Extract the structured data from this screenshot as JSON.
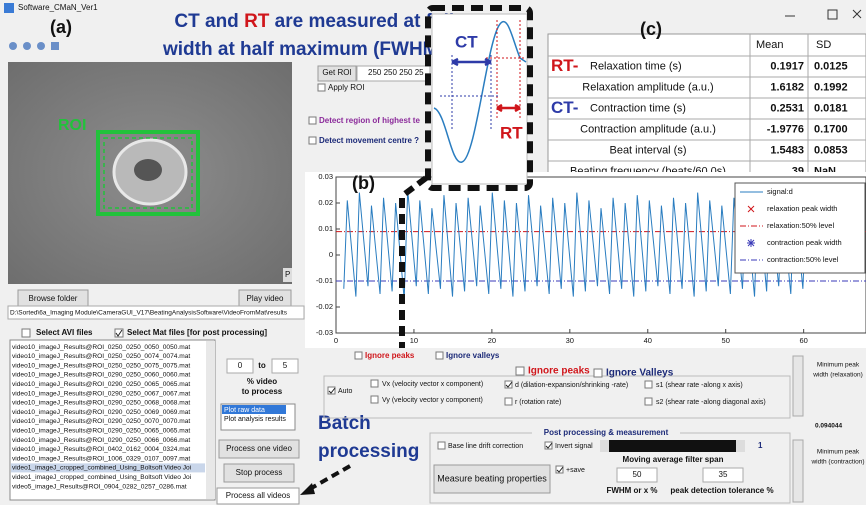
{
  "window": {
    "title": "Software_CMaN_Ver1"
  },
  "panel_labels": [
    "(a)",
    "(b)",
    "(c)"
  ],
  "annotation": {
    "line1": [
      "CT and ",
      "RT",
      " are measured at full"
    ],
    "line2": "width at half maximum (FWHM )",
    "batch": [
      "Batch",
      "processing"
    ],
    "inset_ct": "CT",
    "inset_rt": "RT"
  },
  "video_panel": {
    "roi_label": "ROI",
    "corner": "P",
    "browse": "Browse folder",
    "play": "Play video",
    "path": "D:\\Sorted\\6a_Imaging Module\\CameraGUI_V17\\BeatingAnalysisSoftware\\VideoFromMat\\results"
  },
  "file_select": {
    "avi": "Select AVI files",
    "mat": "Select Mat files [for post processing]",
    "selected": 13,
    "files": [
      "video10_imageJ_Results@ROI_0250_0250_0050_0050.mat",
      "video10_imageJ_Results@ROI_0250_0250_0074_0074.mat",
      "video10_imageJ_Results@ROI_0250_0250_0075_0075.mat",
      "video10_imageJ_Results@ROI_0290_0250_0060_0060.mat",
      "video10_imageJ_Results@ROI_0290_0250_0065_0065.mat",
      "video10_imageJ_Results@ROI_0290_0250_0067_0067.mat",
      "video10_imageJ_Results@ROI_0290_0250_0068_0068.mat",
      "video10_imageJ_Results@ROI_0290_0250_0069_0069.mat",
      "video10_imageJ_Results@ROI_0290_0250_0070_0070.mat",
      "video10_imageJ_Results@ROI_0290_0250_0065_0065.mat",
      "video10_imageJ_Results@ROI_0290_0250_0066_0066.mat",
      "video10_imageJ_Results@ROI_0402_0162_0004_0324.mat",
      "video10_imageJ_Results@ROI_1006_0329_0107_0097.mat",
      "video1_imageJ_cropped_combined_Using_Boltsoft Video Joi",
      "video1_imageJ_cropped_combined_Using_Boltsoft Video Joi",
      "video5_imageJ_Results@ROI_0904_0282_0257_0286.mat"
    ]
  },
  "range": {
    "from": "0",
    "to_label": "to",
    "to": "5",
    "caption": [
      "% video",
      "to process"
    ]
  },
  "plot_list": [
    "Plot raw data",
    "Plot analysis results"
  ],
  "process_buttons": [
    "Process one video",
    "Stop process",
    "Process all videos"
  ],
  "roi_controls": {
    "get_roi": "Get ROI",
    "roi_value": "250 250 250 25",
    "apply": "Apply ROI",
    "detect_region": "Detect region of highest te",
    "detect_centre": "Detect movement centre ?"
  },
  "table": {
    "header": [
      "Mean",
      "SD"
    ],
    "rows": [
      {
        "prefix": "RT-",
        "prefix_color": "#d0161b",
        "label": "Relaxation time (s)",
        "mean": "0.1917",
        "sd": "0.0125"
      },
      {
        "label": "Relaxation amplitude (a.u.)",
        "mean": "1.6182",
        "sd": "0.1992"
      },
      {
        "prefix": "CT-",
        "prefix_color": "#2e3ba8",
        "label": "Contraction time (s)",
        "mean": "0.2531",
        "sd": "0.0181"
      },
      {
        "label": "Contraction amplitude (a.u.)",
        "mean": "-1.9776",
        "sd": "0.1700"
      },
      {
        "label": "Beat interval (s)",
        "mean": "1.5483",
        "sd": "0.0853"
      },
      {
        "label": "Beating frequency (beats/60.0s)",
        "mean": "39",
        "sd": "NaN"
      }
    ]
  },
  "chart_data": {
    "type": "line",
    "legend": "upper right",
    "x": [
      1,
      1.45,
      2.55,
      3,
      4.1,
      4.55,
      5.65,
      6.1,
      7.2,
      7.65,
      8.75,
      9.2,
      10.3,
      10.75,
      11.85,
      12.3,
      13.4,
      13.85,
      14.95,
      15.4,
      16.5,
      16.95,
      18.05,
      18.5,
      19.6,
      20.05,
      21.15,
      21.6,
      22.7,
      23.15,
      24.25,
      24.7,
      25.8,
      26.25,
      27.35,
      27.8,
      28.9,
      29.35,
      30.45,
      30.9,
      32,
      32.45,
      33.55,
      34,
      35.1,
      35.55,
      36.65,
      37.1,
      38.2,
      38.65,
      39.75,
      40.2,
      41.3,
      41.75,
      42.85,
      43.3,
      44.4,
      44.85,
      45.95,
      46.4,
      47.5,
      47.95,
      49.05,
      49.5,
      50.6,
      51.05,
      52.15,
      52.6,
      53.7,
      54.15,
      55.25,
      55.7,
      56.8,
      57.25,
      58.35,
      58.8,
      59.9,
      60.35
    ],
    "series": [
      {
        "name": "signal:d",
        "color": "#2a7dc0",
        "values": [
          -0.013,
          0.021,
          -0.016,
          0.024,
          -0.012,
          0.019,
          -0.015,
          0.022,
          -0.014,
          0.02,
          -0.017,
          0.025,
          -0.012,
          0.021,
          -0.015,
          0.018,
          -0.013,
          0.023,
          -0.016,
          0.02,
          -0.014,
          0.022,
          -0.012,
          0.019,
          -0.015,
          0.024,
          -0.013,
          0.021,
          -0.016,
          0.02,
          -0.014,
          0.023,
          -0.012,
          0.019,
          -0.015,
          0.022,
          -0.013,
          0.02,
          -0.016,
          0.024,
          -0.014,
          0.021,
          -0.012,
          0.018,
          -0.015,
          0.022,
          -0.013,
          0.02,
          -0.016,
          0.023,
          -0.014,
          0.021,
          -0.012,
          0.019,
          -0.015,
          0.022,
          -0.013,
          0.02,
          -0.016,
          0.024,
          -0.014,
          0.021,
          -0.012,
          0.019,
          -0.015,
          0.022,
          -0.013,
          0.02,
          -0.016,
          0.023,
          -0.014,
          0.021,
          -0.012,
          0.019,
          -0.015,
          0.022,
          -0.013,
          0.02
        ]
      }
    ],
    "markers": [
      {
        "name": "relaxation peak width",
        "color": "#d0161b"
      },
      {
        "name": "contraction peak width",
        "color": "#3a3ab8"
      }
    ],
    "levels": [
      {
        "name": "relaxation:50% level",
        "value": 0.009,
        "color": "#d0161b"
      },
      {
        "name": "contraction:50% level",
        "value": -0.01,
        "color": "#3a3ab8"
      }
    ],
    "xlim": [
      0,
      68
    ],
    "ylim": [
      -0.03,
      0.03
    ],
    "xticks": [
      0,
      10,
      20,
      30,
      40,
      50,
      60
    ],
    "yticks": [
      -0.03,
      -0.02,
      -0.01,
      0,
      0.01,
      0.02,
      0.03
    ]
  },
  "ignore": {
    "peaks": "Ignore peaks",
    "valleys": "Ignore valleys"
  },
  "signal_options": {
    "auto": "Auto",
    "vx": "Vx (velocity vector x component)",
    "vy": "Vy (velocity vector y component)",
    "ignore_peaks": "Ignore peaks",
    "ignore_valleys": "Ignore Valleys",
    "d": "d (dilation-expansion/shrinking -rate)",
    "r": "r (rotation rate)",
    "s1": "s1 (shear rate -along x axis)",
    "s2": "s2 (shear rate -along diagonal axis)"
  },
  "min_peak": {
    "relaxation": [
      "Minimum peak",
      "width (relaxation)"
    ],
    "value": "0.094044",
    "contraction": [
      "Minimum peak",
      "width (contraction)"
    ]
  },
  "post": {
    "title": "Post processing & measurement",
    "baseline": "Base line drift correction",
    "invert": "Invert signal",
    "span_value": "1",
    "span_label": "Moving average filter span",
    "measure": "Measure beating properties",
    "save": "+save",
    "fwhm": "50",
    "tolerance": "35",
    "fwhm_label": "FWHM or x %",
    "tolerance_label": "peak detection tolerance %"
  }
}
